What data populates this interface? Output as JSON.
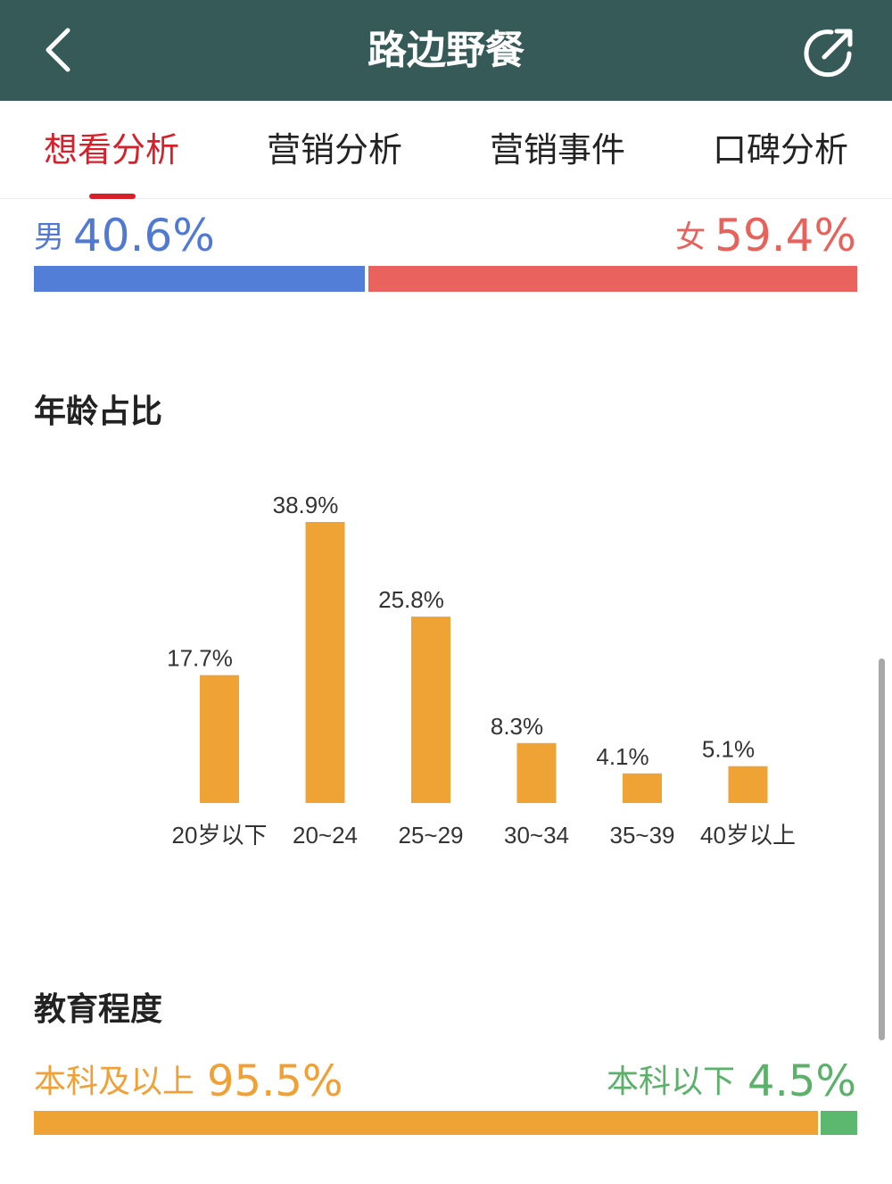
{
  "header": {
    "title": "路边野餐",
    "back_icon": "chevron-left-icon",
    "share_icon": "share-icon",
    "background": "#355a57"
  },
  "tabs": [
    {
      "label": "想看分析",
      "active": true
    },
    {
      "label": "营销分析",
      "active": false
    },
    {
      "label": "营销事件",
      "active": false
    },
    {
      "label": "口碑分析",
      "active": false
    }
  ],
  "gender": {
    "male_label": "男",
    "male_value": "40.6%",
    "male_fraction": 0.406,
    "male_color": "#537ed8",
    "female_label": "女",
    "female_value": "59.4%",
    "female_fraction": 0.594,
    "female_color": "#ea625d"
  },
  "age": {
    "title": "年龄占比"
  },
  "education": {
    "title": "教育程度",
    "high_label": "本科及以上",
    "high_value": "95.5%",
    "high_fraction": 0.955,
    "high_color": "#f0a335",
    "low_label": "本科以下",
    "low_value": "4.5%",
    "low_fraction": 0.045,
    "low_color": "#5db86f"
  },
  "chart_data": {
    "type": "bar",
    "title": "年龄占比",
    "categories": [
      "20岁以下",
      "20~24",
      "25~29",
      "30~34",
      "35~39",
      "40岁以上"
    ],
    "values": [
      17.7,
      38.9,
      25.8,
      8.3,
      4.1,
      5.1
    ],
    "labels": [
      "17.7%",
      "38.9%",
      "25.8%",
      "8.3%",
      "4.1%",
      "5.1%"
    ],
    "color": "#f0a335",
    "grid": false,
    "legend": "none"
  }
}
